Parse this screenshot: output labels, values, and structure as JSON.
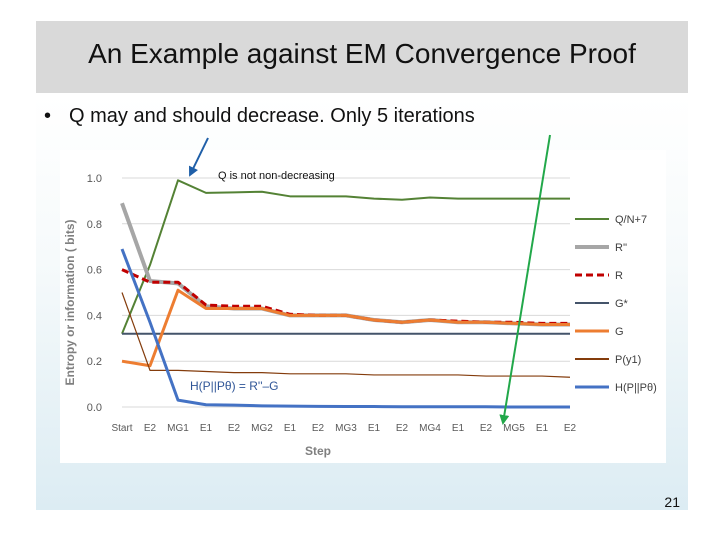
{
  "slide": {
    "title": "An Example against EM Convergence Proof",
    "bullet_symbol": "•",
    "bullet": "Q may and should decrease. Only 5 iterations",
    "page_number": "21"
  },
  "chart_data": {
    "type": "line",
    "title": "",
    "xlabel": "Step",
    "ylabel": "Entropy or information ( bits)",
    "ylim": [
      0,
      1.0
    ],
    "yticks": [
      0.0,
      0.2,
      0.4,
      0.6,
      0.8,
      1.0
    ],
    "categories": [
      "Start",
      "E2",
      "MG1",
      "E1",
      "E2",
      "MG2",
      "E1",
      "E2",
      "MG3",
      "E1",
      "E2",
      "MG4",
      "E1",
      "E2",
      "MG5",
      "E1",
      "E2"
    ],
    "grid": true,
    "legend_position": "right",
    "series": [
      {
        "name": "Q/N+7",
        "color": "#548235",
        "width": 2,
        "dash": "",
        "values": [
          0.32,
          0.62,
          0.99,
          0.935,
          0.937,
          0.94,
          0.92,
          0.92,
          0.92,
          0.91,
          0.905,
          0.915,
          0.91,
          0.91,
          0.91,
          0.91,
          0.91
        ]
      },
      {
        "name": "R''",
        "color": "#a6a6a6",
        "width": 4,
        "dash": "",
        "values": [
          0.89,
          0.55,
          0.54,
          0.44,
          0.43,
          0.43,
          0.4,
          0.4,
          0.4,
          0.38,
          0.37,
          0.38,
          0.37,
          0.37,
          0.365,
          0.36,
          0.36
        ]
      },
      {
        "name": "R",
        "color": "#c00000",
        "width": 3,
        "dash": "7,4",
        "values": [
          0.6,
          0.545,
          0.545,
          0.445,
          0.44,
          0.44,
          0.405,
          0.4,
          0.4,
          0.38,
          0.37,
          0.38,
          0.375,
          0.37,
          0.37,
          0.365,
          0.365
        ]
      },
      {
        "name": "G*",
        "color": "#44546a",
        "width": 2,
        "dash": "",
        "values": [
          0.32,
          0.32,
          0.32,
          0.32,
          0.32,
          0.32,
          0.32,
          0.32,
          0.32,
          0.32,
          0.32,
          0.32,
          0.32,
          0.32,
          0.32,
          0.32,
          0.32
        ]
      },
      {
        "name": "G",
        "color": "#ed7d31",
        "width": 3,
        "dash": "",
        "values": [
          0.2,
          0.18,
          0.51,
          0.43,
          0.43,
          0.43,
          0.4,
          0.4,
          0.4,
          0.38,
          0.37,
          0.38,
          0.37,
          0.37,
          0.365,
          0.36,
          0.36
        ]
      },
      {
        "name": "P(y1)",
        "color": "#843c0c",
        "width": 1.2,
        "dash": "",
        "values": [
          0.5,
          0.16,
          0.16,
          0.155,
          0.15,
          0.15,
          0.145,
          0.145,
          0.145,
          0.14,
          0.14,
          0.14,
          0.14,
          0.135,
          0.135,
          0.135,
          0.13
        ]
      },
      {
        "name": "H(P||Pθ)",
        "color": "#4472c4",
        "width": 3,
        "dash": "",
        "values": [
          0.69,
          0.37,
          0.03,
          0.01,
          0.008,
          0.005,
          0.004,
          0.003,
          0.002,
          0.002,
          0.001,
          0.001,
          0.001,
          0.001,
          0.0,
          0.0,
          0.0
        ]
      }
    ],
    "annotations": [
      {
        "text": "Q is not non-decreasing"
      },
      {
        "text": "H(P||Pθ) = R''–G"
      }
    ]
  }
}
